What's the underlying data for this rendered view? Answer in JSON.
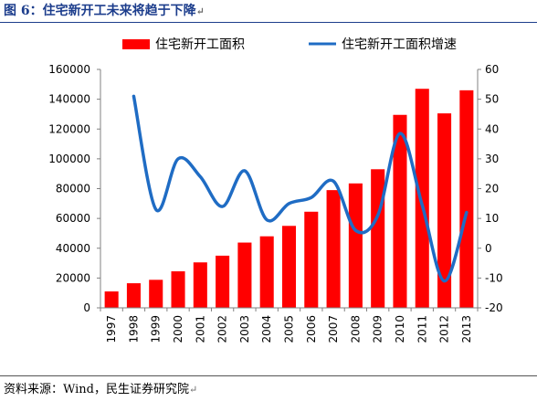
{
  "figure": {
    "title": "图 6：住宅新开工未来将趋于下降",
    "source": "资料来源：Wind，民生证券研究院",
    "para_mark": "↵"
  },
  "chart_data": {
    "type": "bar",
    "categories": [
      "1997",
      "1998",
      "1999",
      "2000",
      "2001",
      "2002",
      "2003",
      "2004",
      "2005",
      "2006",
      "2007",
      "2008",
      "2009",
      "2010",
      "2011",
      "2012",
      "2013"
    ],
    "series": [
      {
        "name": "住宅新开工面积",
        "type": "bar",
        "axis": "left",
        "color": "#ff0000",
        "values": [
          11000,
          16500,
          18800,
          24500,
          30500,
          35000,
          43800,
          48000,
          55000,
          64500,
          79000,
          83500,
          93000,
          129500,
          147000,
          130500,
          146000
        ]
      },
      {
        "name": "住宅新开工面积增速",
        "type": "line",
        "axis": "right",
        "color": "#1f6cc4",
        "values": [
          null,
          51,
          13,
          30,
          24,
          14,
          26,
          9.5,
          15,
          17,
          22.5,
          6,
          11,
          38.5,
          14.5,
          -11,
          12
        ]
      }
    ],
    "y_left": {
      "min": 0,
      "max": 160000,
      "ticks": [
        0,
        20000,
        40000,
        60000,
        80000,
        100000,
        120000,
        140000,
        160000
      ]
    },
    "y_right": {
      "min": -20,
      "max": 60,
      "ticks": [
        -20,
        -10,
        0,
        10,
        20,
        30,
        40,
        50,
        60
      ]
    },
    "legend_position": "top",
    "grid": false
  }
}
